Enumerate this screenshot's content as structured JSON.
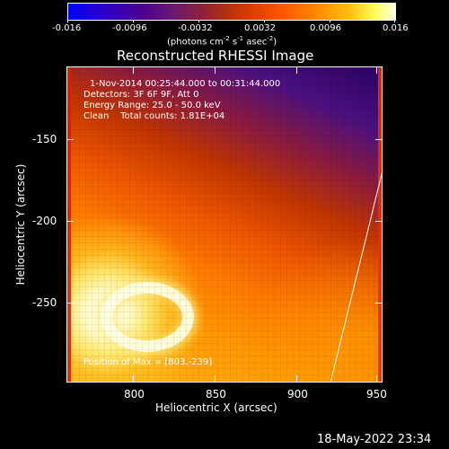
{
  "colorbar": {
    "ticks": [
      "-0.016",
      "-0.0096",
      "-0.0032",
      "0.0032",
      "0.0096",
      "0.016"
    ],
    "units_prefix": "(photons cm",
    "units_exp1": "-2",
    "units_mid1": " s",
    "units_exp2": "-1",
    "units_mid2": " asec",
    "units_exp3": "-2",
    "units_suffix": ")"
  },
  "plot": {
    "title": "Reconstructed RHESSI Image",
    "xlabel": "Heliocentric X (arcsec)",
    "ylabel": "Heliocentric Y (arcsec)",
    "xticks": [
      "800",
      "850",
      "900",
      "950"
    ],
    "yticks": [
      "-150",
      "-200",
      "-250"
    ]
  },
  "info": {
    "time_range": "1-Nov-2014 00:25:44.000 to 00:31:44.000",
    "detectors": "Detectors: 3F 6F 9F, Att 0",
    "energy": "Energy Range: 25.0 - 50.0 keV",
    "clean": "Clean    Total counts: 1.81E+04",
    "position": "Position of Max = [803,-239]"
  },
  "datestamp": "18-May-2022 23:34",
  "colors": {
    "frame": "#ffffff",
    "background": "#000000"
  }
}
